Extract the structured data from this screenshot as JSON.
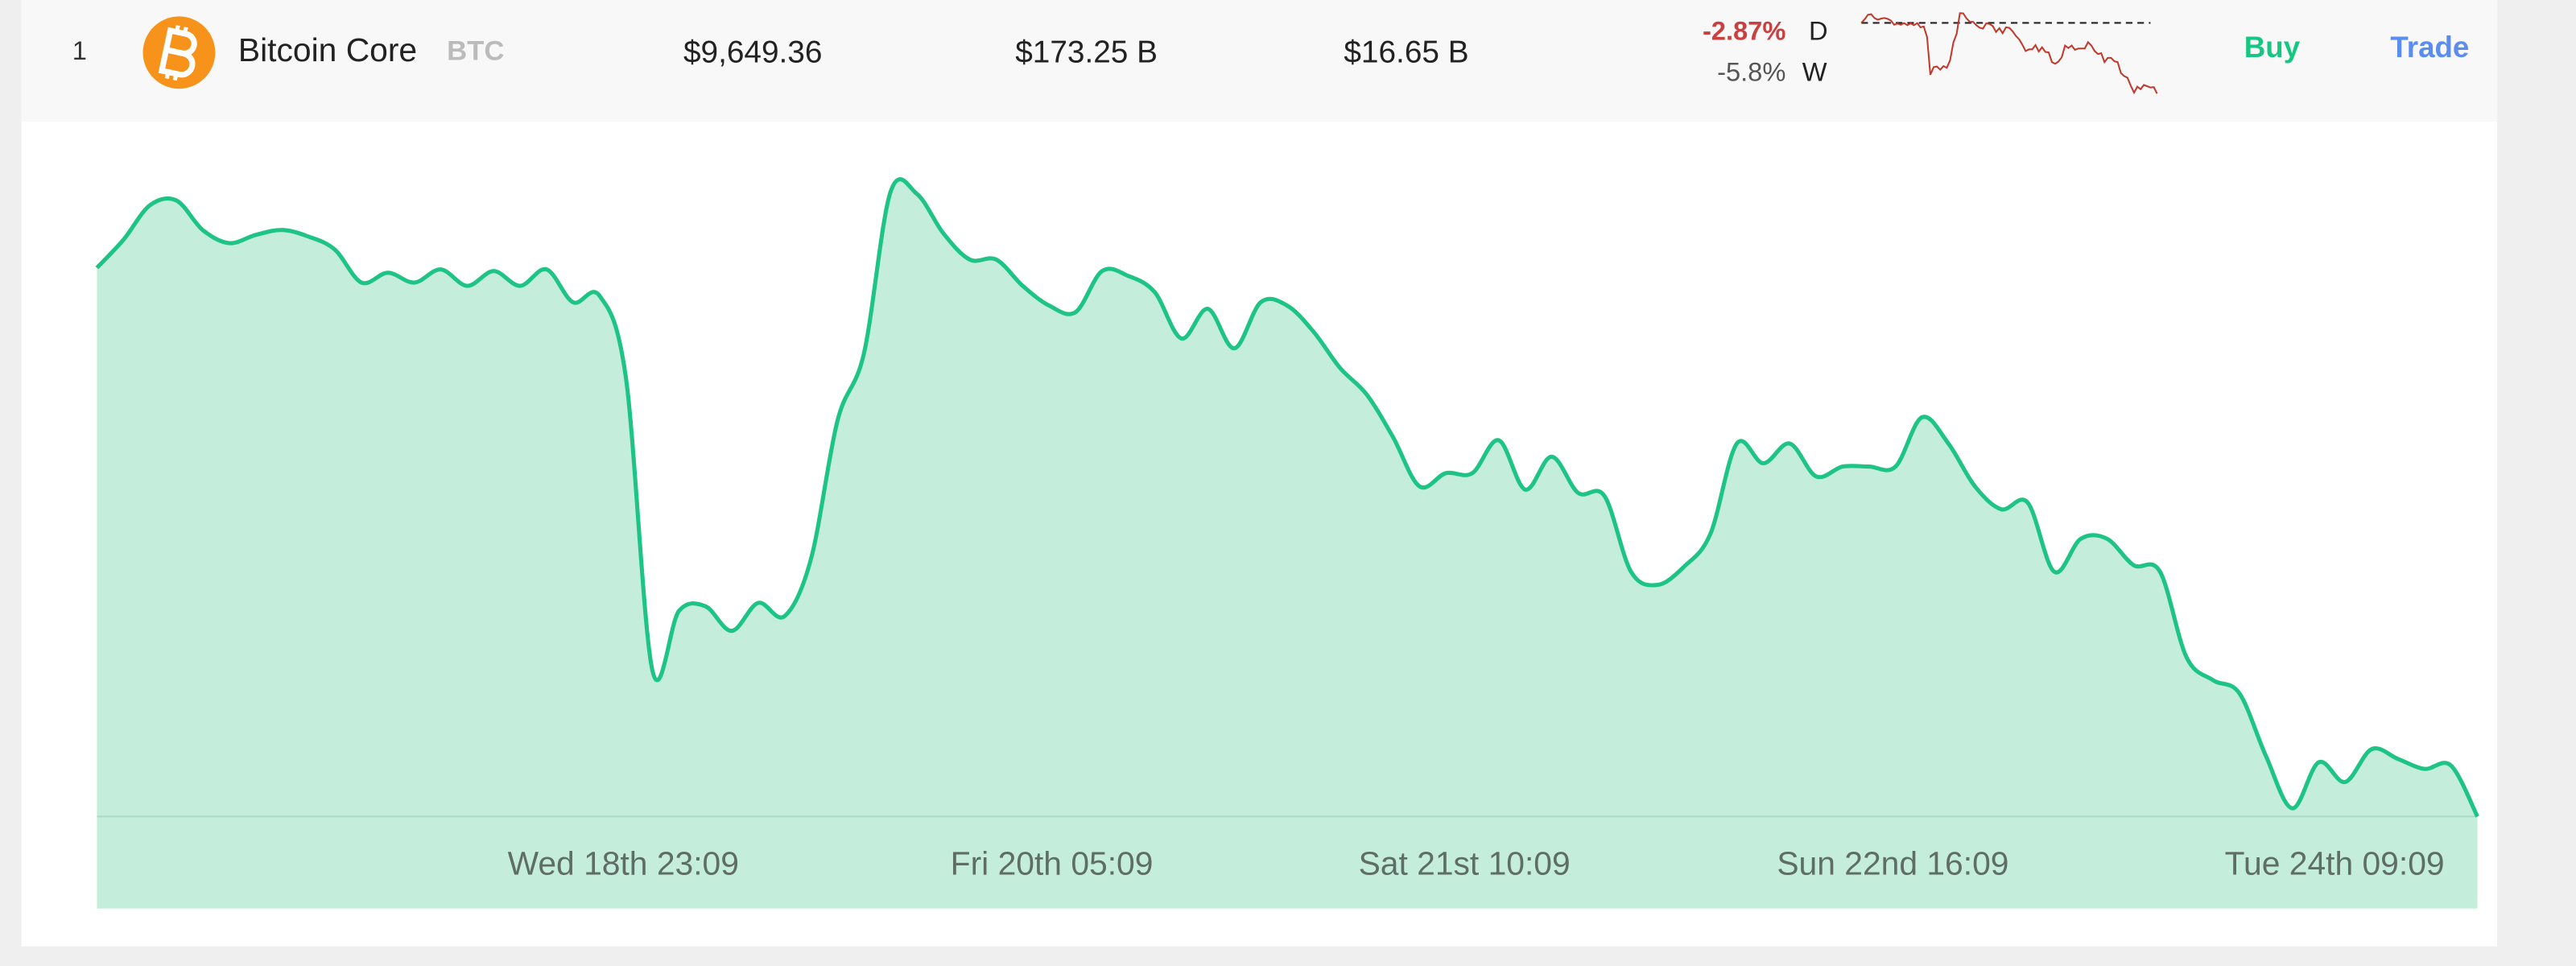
{
  "row": {
    "rank": "1",
    "name": "Bitcoin Core",
    "symbol": "BTC",
    "price": "$9,649.36",
    "market_cap": "$173.25 B",
    "volume": "$16.65 B",
    "change_day": "-2.87%",
    "day_label": "D",
    "change_week": "-5.8%",
    "week_label": "W",
    "buy": "Buy",
    "trade": "Trade"
  },
  "chart_data": {
    "type": "area",
    "color": "#1ec486",
    "fill": "#c5eddc",
    "sparkline_color": "#c0392b",
    "values": [
      10330,
      10364,
      10406,
      10412,
      10376,
      10360,
      10370,
      10376,
      10368,
      10352,
      10312,
      10324,
      10312,
      10328,
      10308,
      10326,
      10308,
      10328,
      10288,
      10296,
      10196,
      9840,
      9912,
      9918,
      9888,
      9922,
      9906,
      9976,
      10144,
      10226,
      10422,
      10420,
      10372,
      10340,
      10340,
      10308,
      10284,
      10276,
      10326,
      10320,
      10300,
      10244,
      10280,
      10232,
      10288,
      10284,
      10252,
      10208,
      10176,
      10124,
      10064,
      10080,
      10080,
      10120,
      10060,
      10100,
      10056,
      10052,
      9960,
      9944,
      9966,
      10006,
      10116,
      10092,
      10116,
      10076,
      10088,
      10088,
      10088,
      10148,
      10116,
      10064,
      10036,
      10044,
      9960,
      10000,
      10000,
      9968,
      9960,
      9856,
      9828,
      9812,
      9736,
      9672,
      9728,
      9704,
      9744,
      9732,
      9720,
      9724,
      9662
    ],
    "ylim": [
      9550,
      10450
    ],
    "xticks": [
      {
        "value": 19.9,
        "label": "Wed 18th 23:09"
      },
      {
        "value": 36.1,
        "label": "Fri 20th 05:09"
      },
      {
        "value": 51.7,
        "label": "Sat 21st 10:09"
      },
      {
        "value": 67.9,
        "label": "Sun 22nd 16:09"
      },
      {
        "value": 84.6,
        "label": "Tue 24th 09:09"
      }
    ]
  }
}
